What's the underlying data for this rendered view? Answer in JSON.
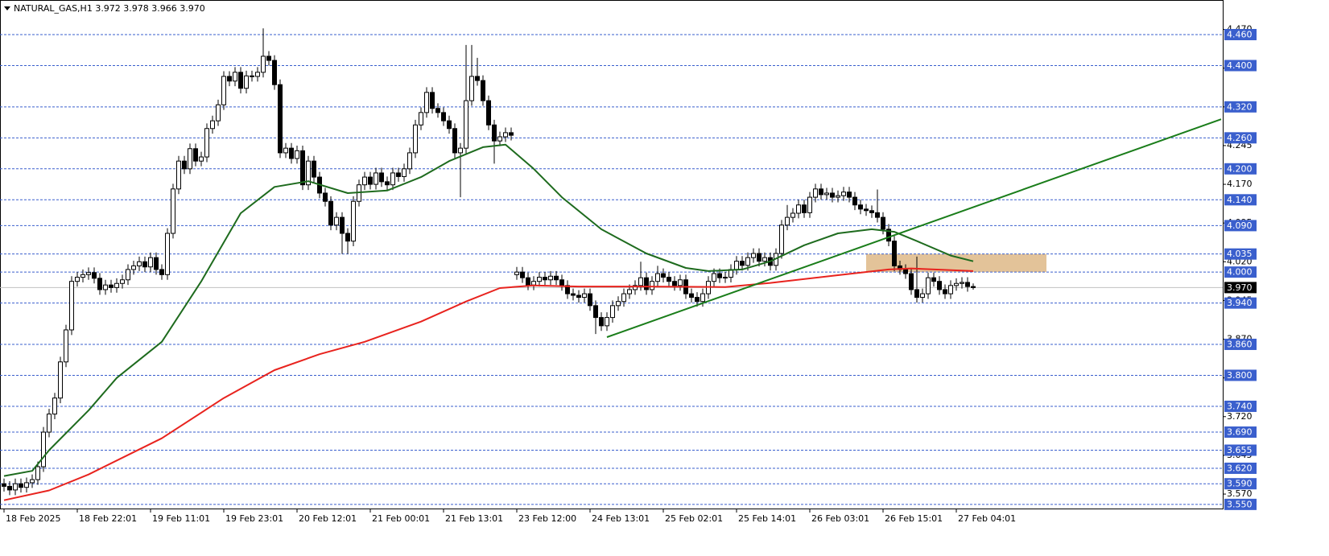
{
  "chart_data": {
    "type": "candlestick",
    "title": "NATURAL_GAS,H1  3.972 3.978 3.966 3.970",
    "categories": [
      "18 Feb 2025",
      null,
      null,
      null,
      null,
      null,
      null,
      null,
      null,
      null,
      null,
      null,
      null,
      "18 Feb 22:01",
      null,
      null,
      null,
      null,
      null,
      null,
      null,
      null,
      null,
      null,
      null,
      null,
      "19 Feb 11:01",
      null,
      null,
      null,
      null,
      null,
      null,
      null,
      null,
      null,
      null,
      null,
      null,
      "19 Feb 23:01",
      null,
      null,
      null,
      null,
      null,
      null,
      null,
      null,
      null,
      null,
      null,
      null,
      "20 Feb 12:01",
      null,
      null,
      null,
      null,
      null,
      null,
      null,
      null,
      null,
      null,
      null,
      null,
      "21 Feb 00:01",
      null,
      null,
      null,
      null,
      null,
      null,
      null,
      null,
      null,
      null,
      null,
      null,
      "21 Feb 13:01",
      null,
      null,
      null,
      null,
      null,
      null,
      null,
      null,
      null,
      null,
      null,
      null,
      "23 Feb 12:00",
      null,
      null,
      null,
      null,
      null,
      null,
      null,
      null,
      null,
      null,
      null,
      null,
      "24 Feb 13:01",
      null,
      null,
      null,
      null,
      null,
      null,
      null,
      null,
      null,
      null,
      null,
      null,
      "25 Feb 02:01",
      null,
      null,
      null,
      null,
      null,
      null,
      null,
      null,
      null,
      null,
      null,
      null,
      "25 Feb 14:01",
      null,
      null,
      null,
      null,
      null,
      null,
      null,
      null,
      null,
      null,
      null,
      null,
      "26 Feb 03:01",
      null,
      null,
      null,
      null,
      null,
      null,
      null,
      null,
      null,
      null,
      null,
      null,
      "26 Feb 15:01",
      null,
      null,
      null,
      null,
      null,
      null,
      null,
      null,
      null,
      null,
      null,
      null,
      "27 Feb 04:01",
      null,
      null,
      null
    ],
    "open": [
      3.59,
      3.585,
      3.578,
      3.59,
      3.583,
      3.592,
      3.598,
      3.623,
      3.69,
      3.725,
      3.756,
      3.826,
      3.888,
      3.982,
      3.99,
      3.995,
      3.999,
      3.988,
      3.966,
      3.975,
      3.97,
      3.978,
      3.985,
      4.005,
      4.012,
      4.02,
      4.01,
      4.028,
      4.005,
      3.995,
      4.075,
      4.161,
      4.215,
      4.2,
      4.239,
      4.215,
      4.223,
      4.278,
      4.293,
      4.324,
      4.379,
      4.37,
      4.387,
      4.356,
      4.38,
      4.379,
      4.387,
      4.418,
      4.41,
      4.363,
      4.231,
      4.24,
      4.22,
      4.235,
      4.169,
      4.215,
      4.184,
      4.153,
      4.137,
      4.091,
      4.106,
      4.075,
      4.06,
      4.137,
      4.169,
      4.184,
      4.17,
      4.192,
      4.175,
      4.169,
      4.192,
      4.185,
      4.2,
      4.231,
      4.285,
      4.309,
      4.348,
      4.317,
      4.309,
      4.293,
      4.278,
      4.231,
      4.24,
      4.332,
      4.379,
      4.371,
      4.332,
      4.285,
      4.254,
      4.262,
      4.27,
      3.995,
      4.0,
      3.989,
      3.975,
      3.982,
      3.99,
      3.985,
      3.992,
      3.985,
      3.974,
      3.958,
      3.955,
      3.951,
      3.958,
      3.935,
      3.912,
      3.896,
      3.912,
      3.935,
      3.943,
      3.958,
      3.966,
      3.974,
      3.989,
      3.966,
      3.982,
      3.997,
      3.99,
      3.982,
      3.974,
      3.985,
      3.958,
      3.951,
      3.943,
      3.958,
      3.982,
      3.997,
      3.989,
      3.99,
      4.005,
      4.021,
      4.013,
      4.028,
      4.036,
      4.021,
      4.028,
      4.013,
      4.036,
      4.091,
      4.106,
      4.114,
      4.13,
      4.115,
      4.145,
      4.161,
      4.15,
      4.153,
      4.145,
      4.148,
      4.155,
      4.145,
      4.13,
      4.122,
      4.119,
      4.115,
      4.106,
      4.083,
      4.06,
      4.012,
      4.005,
      3.997,
      3.966,
      3.951,
      3.958,
      3.989,
      3.982,
      3.966,
      3.958,
      3.974,
      3.978,
      3.98,
      3.972
    ],
    "high": [
      3.6,
      3.595,
      3.6,
      3.6,
      3.602,
      3.608,
      3.633,
      3.7,
      3.735,
      3.766,
      3.836,
      3.898,
      3.992,
      4.0,
      4.005,
      4.009,
      4.009,
      3.998,
      3.985,
      3.985,
      3.988,
      3.995,
      4.015,
      4.022,
      4.03,
      4.03,
      4.038,
      4.038,
      4.015,
      4.085,
      4.171,
      4.225,
      4.225,
      4.249,
      4.249,
      4.233,
      4.288,
      4.303,
      4.334,
      4.389,
      4.389,
      4.397,
      4.397,
      4.39,
      4.39,
      4.397,
      4.472,
      4.428,
      4.42,
      4.373,
      4.25,
      4.25,
      4.245,
      4.245,
      4.225,
      4.225,
      4.194,
      4.163,
      4.147,
      4.116,
      4.116,
      4.085,
      4.147,
      4.179,
      4.194,
      4.194,
      4.202,
      4.202,
      4.185,
      4.202,
      4.202,
      4.21,
      4.241,
      4.295,
      4.319,
      4.358,
      4.358,
      4.327,
      4.319,
      4.303,
      4.288,
      4.25,
      4.44,
      4.44,
      4.415,
      4.381,
      4.342,
      4.295,
      4.272,
      4.28,
      4.28,
      4.01,
      4.01,
      3.999,
      3.992,
      4.0,
      4.0,
      4.002,
      4.002,
      3.995,
      3.984,
      3.968,
      3.965,
      3.968,
      3.968,
      3.945,
      3.922,
      3.922,
      3.945,
      3.953,
      3.968,
      3.976,
      3.984,
      4.02,
      3.999,
      3.992,
      4.012,
      4.007,
      4.0,
      3.992,
      3.995,
      3.995,
      3.968,
      3.961,
      3.968,
      3.992,
      4.007,
      4.007,
      4.0,
      4.015,
      4.031,
      4.031,
      4.038,
      4.046,
      4.046,
      4.038,
      4.038,
      4.046,
      4.101,
      4.13,
      4.124,
      4.14,
      4.14,
      4.155,
      4.171,
      4.171,
      4.163,
      4.163,
      4.158,
      4.165,
      4.165,
      4.155,
      4.14,
      4.132,
      4.129,
      4.16,
      4.116,
      4.093,
      4.07,
      4.022,
      4.015,
      4.007,
      4.03,
      3.968,
      3.999,
      3.999,
      3.992,
      3.976,
      3.984,
      3.988,
      3.99,
      3.99,
      3.978
    ],
    "low": [
      3.575,
      3.568,
      3.568,
      3.573,
      3.573,
      3.582,
      3.588,
      3.613,
      3.68,
      3.715,
      3.746,
      3.816,
      3.878,
      3.972,
      3.98,
      3.985,
      3.978,
      3.956,
      3.956,
      3.96,
      3.96,
      3.968,
      3.975,
      3.995,
      4.002,
      4.0,
      4.0,
      3.995,
      3.985,
      3.985,
      4.065,
      4.151,
      4.19,
      4.19,
      4.205,
      4.205,
      4.213,
      4.268,
      4.283,
      4.314,
      4.36,
      4.36,
      4.346,
      4.346,
      4.369,
      4.369,
      4.377,
      4.4,
      4.353,
      4.221,
      4.221,
      4.21,
      4.21,
      4.159,
      4.159,
      4.174,
      4.143,
      4.127,
      4.081,
      4.081,
      4.035,
      4.035,
      4.05,
      4.127,
      4.159,
      4.16,
      4.16,
      4.165,
      4.159,
      4.159,
      4.175,
      4.175,
      4.19,
      4.221,
      4.275,
      4.299,
      4.307,
      4.299,
      4.283,
      4.268,
      4.221,
      4.145,
      4.23,
      4.322,
      4.361,
      4.322,
      4.275,
      4.21,
      4.244,
      4.252,
      4.255,
      3.985,
      3.979,
      3.965,
      3.965,
      3.972,
      3.975,
      3.975,
      3.975,
      3.964,
      3.948,
      3.945,
      3.941,
      3.941,
      3.925,
      3.88,
      3.886,
      3.886,
      3.902,
      3.925,
      3.933,
      3.948,
      3.956,
      3.964,
      3.956,
      3.956,
      3.972,
      3.98,
      3.972,
      3.964,
      3.964,
      3.948,
      3.941,
      3.933,
      3.933,
      3.948,
      3.972,
      3.979,
      3.979,
      3.98,
      3.995,
      4.003,
      4.003,
      4.018,
      4.011,
      4.011,
      4.003,
      4.003,
      4.026,
      4.081,
      4.096,
      4.104,
      4.105,
      4.105,
      4.135,
      4.14,
      4.14,
      4.135,
      4.135,
      4.138,
      4.135,
      4.12,
      4.112,
      4.109,
      4.105,
      4.096,
      4.073,
      4.05,
      4.002,
      3.995,
      3.987,
      3.956,
      3.941,
      3.941,
      3.948,
      3.972,
      3.956,
      3.948,
      3.948,
      3.964,
      3.968,
      3.962,
      3.966
    ],
    "close": [
      3.585,
      3.578,
      3.59,
      3.583,
      3.592,
      3.598,
      3.623,
      3.69,
      3.725,
      3.756,
      3.826,
      3.888,
      3.982,
      3.99,
      3.995,
      3.999,
      3.988,
      3.966,
      3.975,
      3.97,
      3.978,
      3.985,
      4.005,
      4.012,
      4.02,
      4.01,
      4.028,
      4.005,
      3.995,
      4.075,
      4.161,
      4.215,
      4.2,
      4.239,
      4.215,
      4.223,
      4.278,
      4.293,
      4.324,
      4.379,
      4.37,
      4.387,
      4.356,
      4.38,
      4.379,
      4.387,
      4.418,
      4.41,
      4.363,
      4.231,
      4.24,
      4.22,
      4.235,
      4.169,
      4.215,
      4.184,
      4.153,
      4.137,
      4.091,
      4.106,
      4.075,
      4.06,
      4.137,
      4.169,
      4.184,
      4.17,
      4.192,
      4.175,
      4.169,
      4.192,
      4.185,
      4.2,
      4.231,
      4.285,
      4.309,
      4.348,
      4.317,
      4.309,
      4.293,
      4.278,
      4.231,
      4.24,
      4.332,
      4.379,
      4.371,
      4.332,
      4.285,
      4.254,
      4.262,
      4.27,
      4.265,
      4.0,
      3.989,
      3.975,
      3.982,
      3.99,
      3.985,
      3.992,
      3.985,
      3.974,
      3.958,
      3.955,
      3.951,
      3.958,
      3.935,
      3.912,
      3.896,
      3.912,
      3.935,
      3.943,
      3.958,
      3.966,
      3.974,
      3.989,
      3.966,
      3.982,
      3.997,
      3.99,
      3.982,
      3.974,
      3.985,
      3.958,
      3.951,
      3.943,
      3.958,
      3.982,
      3.997,
      3.989,
      3.99,
      4.005,
      4.021,
      4.013,
      4.028,
      4.036,
      4.021,
      4.028,
      4.013,
      4.036,
      4.091,
      4.106,
      4.114,
      4.13,
      4.115,
      4.145,
      4.161,
      4.15,
      4.153,
      4.145,
      4.148,
      4.155,
      4.145,
      4.13,
      4.122,
      4.119,
      4.115,
      4.106,
      4.083,
      4.06,
      4.012,
      4.005,
      3.997,
      3.966,
      3.951,
      3.958,
      3.989,
      3.982,
      3.966,
      3.958,
      3.974,
      3.978,
      3.98,
      3.972,
      3.97
    ],
    "up_color": "#ffffff",
    "down_color": "#000000",
    "ylim": [
      3.542,
      4.527
    ],
    "yticks": [
      {
        "value": 4.47,
        "label": "4.470"
      },
      4.395,
      {
        "value": 4.32,
        "label": "4.320"
      },
      4.245,
      {
        "value": 4.17,
        "label": "4.170"
      },
      4.095,
      {
        "value": 4.02,
        "label": "4.020"
      },
      3.945,
      {
        "value": 3.87,
        "label": "3.870"
      },
      3.795,
      {
        "value": 3.72,
        "label": "3.720"
      },
      3.645,
      {
        "value": 3.57,
        "label": "3.570"
      }
    ],
    "levels": [
      {
        "value": 4.46,
        "label": "4.460"
      },
      {
        "value": 4.4,
        "label": "4.400"
      },
      {
        "value": 4.32,
        "label": "4.320"
      },
      {
        "value": 4.26,
        "label": "4.260"
      },
      {
        "value": 4.2,
        "label": "4.200"
      },
      {
        "value": 4.14,
        "label": "4.140"
      },
      {
        "value": 4.09,
        "label": "4.090"
      },
      4.035,
      {
        "value": 4.0,
        "label": "4.000"
      },
      {
        "value": 3.94,
        "label": "3.940"
      },
      {
        "value": 3.86,
        "label": "3.860"
      },
      {
        "value": 3.8,
        "label": "3.800"
      },
      {
        "value": 3.74,
        "label": "3.740"
      },
      {
        "value": 3.69,
        "label": "3.690"
      },
      3.655,
      {
        "value": 3.62,
        "label": "3.620"
      },
      {
        "value": 3.59,
        "label": "3.590"
      },
      {
        "value": 3.55,
        "label": "3.550"
      }
    ],
    "level_color": "#3a5fcd",
    "current_price": {
      "value": 3.97,
      "label": "3.970"
    },
    "series": [
      {
        "color": "#1e6b1e",
        "x": [
          0,
          5,
          8,
          15,
          20,
          28,
          35,
          42,
          48,
          54,
          61,
          68,
          74,
          79,
          85,
          89,
          94,
          99,
          106,
          114,
          121,
          125,
          131,
          136,
          142,
          148,
          154,
          158,
          162,
          168,
          172
        ],
        "values": [
          3.605,
          3.615,
          3.655,
          3.732,
          3.795,
          3.865,
          3.982,
          4.114,
          4.165,
          4.176,
          4.153,
          4.158,
          4.184,
          4.215,
          4.242,
          4.247,
          4.2,
          4.145,
          4.083,
          4.036,
          4.008,
          4.002,
          4.005,
          4.021,
          4.052,
          4.075,
          4.083,
          4.078,
          4.06,
          4.032,
          4.021
        ]
      },
      {
        "color": "#e8231e",
        "x": [
          0,
          8,
          15,
          28,
          39,
          48,
          56,
          64,
          74,
          82,
          88,
          94,
          102,
          114,
          128,
          136,
          148,
          157,
          161,
          172
        ],
        "values": [
          3.558,
          3.577,
          3.608,
          3.678,
          3.756,
          3.81,
          3.841,
          3.865,
          3.904,
          3.943,
          3.969,
          3.974,
          3.972,
          3.972,
          3.971,
          3.979,
          3.994,
          4.005,
          4.007,
          4.002
        ]
      },
      {
        "color": "#1a7d1a",
        "x": [
          107,
          216
        ],
        "values": [
          3.874,
          4.296
        ]
      }
    ],
    "zone": {
      "color": "#deb887",
      "x": [
        153,
        185
      ],
      "values": [
        4.0,
        4.035
      ]
    }
  }
}
